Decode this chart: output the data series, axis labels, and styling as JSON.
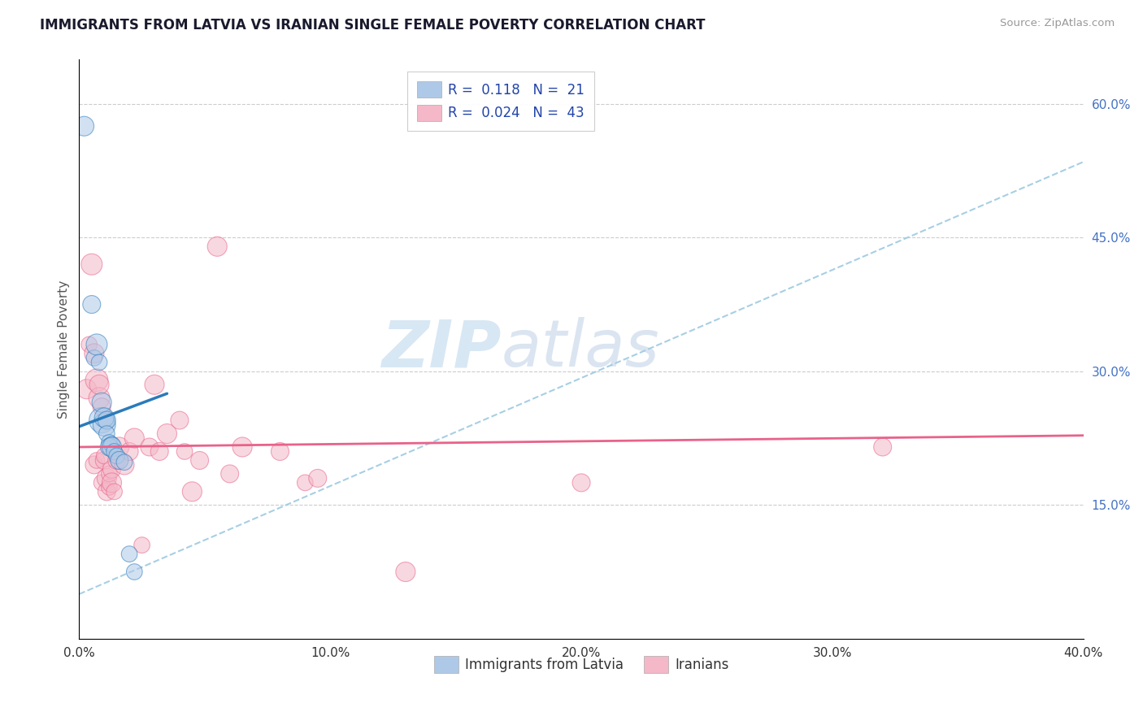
{
  "title": "IMMIGRANTS FROM LATVIA VS IRANIAN SINGLE FEMALE POVERTY CORRELATION CHART",
  "source": "Source: ZipAtlas.com",
  "ylabel": "Single Female Poverty",
  "x_min": 0.0,
  "x_max": 0.4,
  "y_min": 0.0,
  "y_max": 0.65,
  "x_ticks": [
    0.0,
    0.1,
    0.2,
    0.3,
    0.4
  ],
  "x_tick_labels": [
    "0.0%",
    "10.0%",
    "20.0%",
    "30.0%",
    "40.0%"
  ],
  "y_ticks_right": [
    0.15,
    0.3,
    0.45,
    0.6
  ],
  "y_tick_labels_right": [
    "15.0%",
    "30.0%",
    "45.0%",
    "60.0%"
  ],
  "legend_r1": "R =  0.118",
  "legend_n1": "N =  21",
  "legend_r2": "R =  0.024",
  "legend_n2": "N =  43",
  "color_blue": "#aec9e8",
  "color_pink": "#f4b8c8",
  "color_blue_line": "#2b7bba",
  "color_pink_line": "#e8628a",
  "color_dash": "#9ecae1",
  "watermark_zip": "ZIP",
  "watermark_atlas": "atlas",
  "latvia_points": [
    [
      0.002,
      0.575
    ],
    [
      0.005,
      0.375
    ],
    [
      0.006,
      0.315
    ],
    [
      0.007,
      0.33
    ],
    [
      0.008,
      0.31
    ],
    [
      0.009,
      0.245
    ],
    [
      0.009,
      0.265
    ],
    [
      0.01,
      0.24
    ],
    [
      0.01,
      0.248
    ],
    [
      0.011,
      0.245
    ],
    [
      0.011,
      0.23
    ],
    [
      0.012,
      0.22
    ],
    [
      0.012,
      0.215
    ],
    [
      0.013,
      0.218
    ],
    [
      0.013,
      0.215
    ],
    [
      0.014,
      0.21
    ],
    [
      0.015,
      0.205
    ],
    [
      0.016,
      0.2
    ],
    [
      0.018,
      0.198
    ],
    [
      0.02,
      0.095
    ],
    [
      0.022,
      0.075
    ]
  ],
  "latvia_sizes": [
    300,
    250,
    200,
    350,
    200,
    500,
    300,
    400,
    300,
    250,
    200,
    200,
    250,
    200,
    300,
    200,
    200,
    250,
    200,
    200,
    200
  ],
  "iranian_points": [
    [
      0.003,
      0.28
    ],
    [
      0.004,
      0.33
    ],
    [
      0.005,
      0.42
    ],
    [
      0.006,
      0.32
    ],
    [
      0.006,
      0.195
    ],
    [
      0.007,
      0.2
    ],
    [
      0.007,
      0.29
    ],
    [
      0.008,
      0.27
    ],
    [
      0.008,
      0.285
    ],
    [
      0.009,
      0.26
    ],
    [
      0.009,
      0.175
    ],
    [
      0.01,
      0.2
    ],
    [
      0.01,
      0.205
    ],
    [
      0.011,
      0.18
    ],
    [
      0.011,
      0.165
    ],
    [
      0.012,
      0.17
    ],
    [
      0.012,
      0.185
    ],
    [
      0.013,
      0.19
    ],
    [
      0.013,
      0.175
    ],
    [
      0.014,
      0.165
    ],
    [
      0.015,
      0.2
    ],
    [
      0.016,
      0.215
    ],
    [
      0.018,
      0.195
    ],
    [
      0.02,
      0.21
    ],
    [
      0.022,
      0.225
    ],
    [
      0.025,
      0.105
    ],
    [
      0.028,
      0.215
    ],
    [
      0.03,
      0.285
    ],
    [
      0.032,
      0.21
    ],
    [
      0.035,
      0.23
    ],
    [
      0.04,
      0.245
    ],
    [
      0.042,
      0.21
    ],
    [
      0.045,
      0.165
    ],
    [
      0.048,
      0.2
    ],
    [
      0.055,
      0.44
    ],
    [
      0.06,
      0.185
    ],
    [
      0.065,
      0.215
    ],
    [
      0.08,
      0.21
    ],
    [
      0.09,
      0.175
    ],
    [
      0.095,
      0.18
    ],
    [
      0.13,
      0.075
    ],
    [
      0.2,
      0.175
    ],
    [
      0.32,
      0.215
    ]
  ],
  "iranian_sizes": [
    300,
    200,
    350,
    300,
    250,
    200,
    400,
    350,
    300,
    250,
    200,
    250,
    200,
    300,
    250,
    200,
    200,
    250,
    300,
    200,
    250,
    300,
    300,
    250,
    300,
    200,
    250,
    300,
    250,
    300,
    250,
    200,
    300,
    250,
    300,
    250,
    300,
    250,
    200,
    250,
    300,
    250,
    250
  ],
  "blue_line_x": [
    0.0,
    0.035
  ],
  "blue_line_y": [
    0.238,
    0.275
  ],
  "pink_line_x": [
    0.0,
    0.4
  ],
  "pink_line_y": [
    0.215,
    0.228
  ],
  "dash_line_x": [
    0.0,
    0.4
  ],
  "dash_line_y": [
    0.05,
    0.535
  ]
}
